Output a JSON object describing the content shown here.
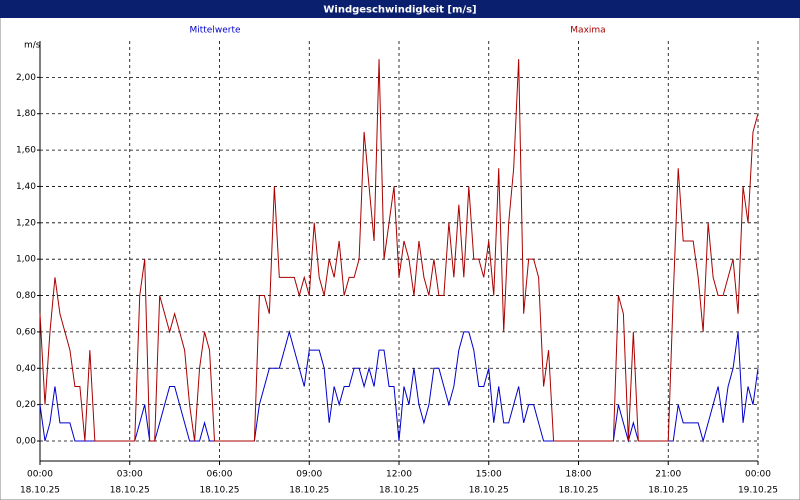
{
  "window_title": "Windgeschwindigkeit [m/s]",
  "chart_data": {
    "type": "line",
    "y_unit": "m/s",
    "x": [
      0,
      10,
      20,
      30,
      40,
      50,
      60,
      70,
      80,
      90,
      100,
      110,
      120,
      130,
      140,
      150,
      160,
      170,
      180,
      190,
      200,
      210,
      220,
      230,
      240,
      250,
      260,
      270,
      280,
      290,
      300,
      310,
      320,
      330,
      340,
      350,
      360,
      370,
      380,
      390,
      400,
      410,
      420,
      430,
      440,
      450,
      460,
      470,
      480,
      490,
      500,
      510,
      520,
      530,
      540,
      550,
      560,
      570,
      580,
      590,
      600,
      610,
      620,
      630,
      640,
      650,
      660,
      670,
      680,
      690,
      700,
      710,
      720,
      730,
      740,
      750,
      760,
      770,
      780,
      790,
      800,
      810,
      820,
      830,
      840,
      850,
      860,
      870,
      880,
      890,
      900,
      910,
      920,
      930,
      940,
      950,
      960,
      970,
      980,
      990,
      1000,
      1010,
      1020,
      1030,
      1040,
      1050,
      1060,
      1070,
      1080,
      1090,
      1100,
      1110,
      1120,
      1130,
      1140,
      1150,
      1160,
      1170,
      1180,
      1190,
      1200,
      1210,
      1220,
      1230,
      1240,
      1250,
      1260,
      1270,
      1280,
      1290,
      1300,
      1310,
      1320,
      1330,
      1340,
      1350,
      1360,
      1370,
      1380,
      1390,
      1400,
      1410,
      1420,
      1430,
      1440
    ],
    "series": [
      {
        "name": "Mittelwerte",
        "color": "#0000cc",
        "values": [
          0.2,
          0.0,
          0.1,
          0.3,
          0.1,
          0.1,
          0.1,
          0.0,
          0,
          0,
          0,
          0,
          0,
          0,
          0,
          0,
          0,
          0,
          0,
          0.0,
          0.1,
          0.2,
          0.0,
          0.0,
          0.1,
          0.2,
          0.3,
          0.3,
          0.2,
          0.1,
          0.0,
          0.0,
          0.0,
          0.1,
          0.0,
          0.0,
          0,
          0,
          0,
          0,
          0,
          0,
          0,
          0,
          0.2,
          0.3,
          0.4,
          0.4,
          0.4,
          0.5,
          0.6,
          0.5,
          0.4,
          0.3,
          0.5,
          0.5,
          0.5,
          0.4,
          0.1,
          0.3,
          0.2,
          0.3,
          0.3,
          0.4,
          0.4,
          0.3,
          0.4,
          0.3,
          0.5,
          0.5,
          0.3,
          0.3,
          0.0,
          0.3,
          0.2,
          0.4,
          0.2,
          0.1,
          0.2,
          0.4,
          0.4,
          0.3,
          0.2,
          0.3,
          0.5,
          0.6,
          0.6,
          0.5,
          0.3,
          0.3,
          0.4,
          0.1,
          0.3,
          0.1,
          0.1,
          0.2,
          0.3,
          0.1,
          0.2,
          0.2,
          0.1,
          0.0,
          0.0,
          0.0,
          0.0,
          0,
          0,
          0,
          0,
          0,
          0,
          0,
          0,
          0,
          0,
          0,
          0.2,
          0.1,
          0.0,
          0.1,
          0.0,
          0,
          0,
          0,
          0,
          0,
          0.0,
          0.0,
          0.2,
          0.1,
          0.1,
          0.1,
          0.1,
          0.0,
          0.1,
          0.2,
          0.3,
          0.1,
          0.3,
          0.4,
          0.6,
          0.1,
          0.3,
          0.2,
          0.4
        ]
      },
      {
        "name": "Maxima",
        "color": "#aa0000",
        "values": [
          0.7,
          0.2,
          0.6,
          0.9,
          0.7,
          0.6,
          0.5,
          0.3,
          0.3,
          0.0,
          0.5,
          0.0,
          0,
          0,
          0,
          0,
          0,
          0,
          0,
          0.0,
          0.8,
          1.0,
          0.0,
          0.0,
          0.8,
          0.7,
          0.6,
          0.7,
          0.6,
          0.5,
          0.2,
          0.0,
          0.4,
          0.6,
          0.5,
          0.0,
          0,
          0,
          0,
          0,
          0,
          0,
          0,
          0,
          0.8,
          0.8,
          0.7,
          1.4,
          0.9,
          0.9,
          0.9,
          0.9,
          0.8,
          0.9,
          0.8,
          1.2,
          0.9,
          0.8,
          1.0,
          0.9,
          1.1,
          0.8,
          0.9,
          0.9,
          1.0,
          1.7,
          1.4,
          1.1,
          2.1,
          1.0,
          1.2,
          1.4,
          0.9,
          1.1,
          1.0,
          0.8,
          1.1,
          0.9,
          0.8,
          1.0,
          0.8,
          0.8,
          1.2,
          0.9,
          1.3,
          0.9,
          1.4,
          1.0,
          1.0,
          0.9,
          1.1,
          0.8,
          1.5,
          0.6,
          1.2,
          1.5,
          2.1,
          0.7,
          1.0,
          1.0,
          0.9,
          0.3,
          0.5,
          0.0,
          0.0,
          0,
          0,
          0,
          0,
          0,
          0,
          0,
          0,
          0,
          0,
          0,
          0.8,
          0.7,
          0.0,
          0.6,
          0.0,
          0,
          0,
          0,
          0,
          0,
          0.0,
          0.8,
          1.5,
          1.1,
          1.1,
          1.1,
          0.9,
          0.6,
          1.2,
          0.9,
          0.8,
          0.8,
          0.9,
          1.0,
          0.7,
          1.4,
          1.2,
          1.7,
          1.8
        ]
      }
    ],
    "xlim": [
      0,
      1440
    ],
    "xticks": [
      {
        "value": 0,
        "label": "00:00"
      },
      {
        "value": 180,
        "label": "03:00"
      },
      {
        "value": 360,
        "label": "06:00"
      },
      {
        "value": 540,
        "label": "09:00"
      },
      {
        "value": 720,
        "label": "12:00"
      },
      {
        "value": 900,
        "label": "15:00"
      },
      {
        "value": 1080,
        "label": "18:00"
      },
      {
        "value": 1260,
        "label": "21:00"
      },
      {
        "value": 1440,
        "label": "00:00"
      }
    ],
    "xtick_dates": [
      "18.10.25",
      "18.10.25",
      "18.10.25",
      "18.10.25",
      "18.10.25",
      "18.10.25",
      "18.10.25",
      "18.10.25",
      "19.10.25"
    ],
    "ylim": [
      -0.11,
      2.2
    ],
    "yticks": [
      {
        "value": 0,
        "label": "0,00"
      },
      {
        "value": 0.2,
        "label": "0,20"
      },
      {
        "value": 0.4,
        "label": "0,40"
      },
      {
        "value": 0.6,
        "label": "0,60"
      },
      {
        "value": 0.8,
        "label": "0,80"
      },
      {
        "value": 1,
        "label": "1,00"
      },
      {
        "value": 1.2,
        "label": "1,20"
      },
      {
        "value": 1.4,
        "label": "1,40"
      },
      {
        "value": 1.6,
        "label": "1,60"
      },
      {
        "value": 1.8,
        "label": "1,80"
      },
      {
        "value": 2,
        "label": "2,00"
      }
    ],
    "grid": true
  }
}
